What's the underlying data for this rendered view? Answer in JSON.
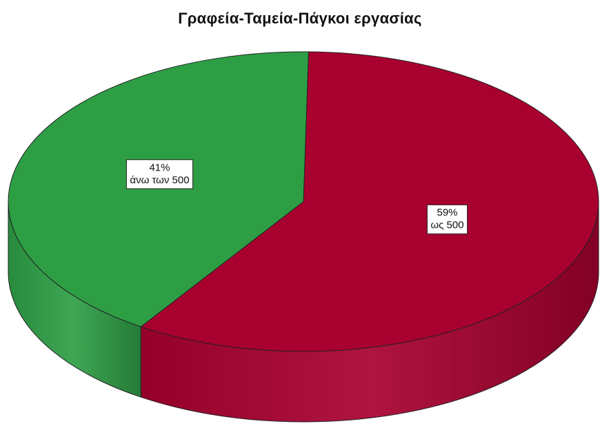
{
  "chart_data": {
    "type": "pie",
    "title": "Γραφεία-Ταμεία-Πάγκοι εργασίας",
    "style": "3d",
    "slices": [
      {
        "category": "ως 500",
        "percent": 59,
        "pct_label": "59%",
        "color": "#A8002F"
      },
      {
        "category": "άνω των 500",
        "percent": 41,
        "pct_label": "41%",
        "color": "#2E9E45"
      }
    ]
  }
}
